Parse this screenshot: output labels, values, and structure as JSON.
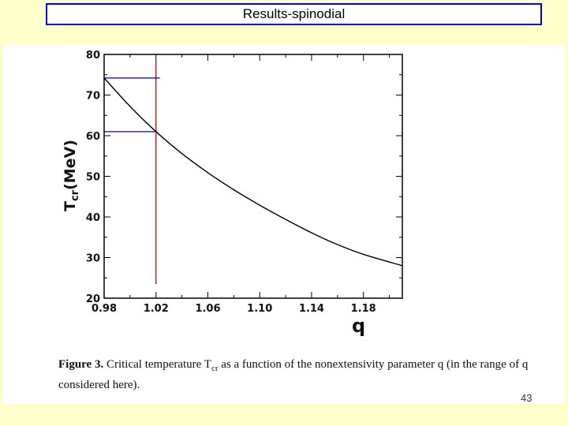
{
  "slide": {
    "title": "Results-spinodial",
    "page_number": "43"
  },
  "caption": {
    "label": "Figure 3.",
    "text": " Critical temperature T",
    "sub": "cr",
    "text2": " as a function of the nonextensivity parameter q (in the range of q considered here)."
  },
  "colors": {
    "background": "#ffffcc",
    "title_border": "#0000cc",
    "curve": "#000000",
    "red_line": "#cc0000",
    "blue_line": "#0000aa"
  },
  "chart_data": {
    "type": "line",
    "xlabel": "q",
    "ylabel_main": "T",
    "ylabel_sub": "cr",
    "ylabel_unit": "(MeV)",
    "xlim": [
      0.98,
      1.21
    ],
    "ylim": [
      20,
      80
    ],
    "xticks": [
      0.98,
      1.02,
      1.06,
      1.1,
      1.14,
      1.18
    ],
    "xtick_labels": [
      "0.98",
      "1.02",
      "1.06",
      "1.10",
      "1.14",
      "1.18"
    ],
    "yticks": [
      20,
      30,
      40,
      50,
      60,
      70,
      80
    ],
    "ytick_labels": [
      "20",
      "30",
      "40",
      "50",
      "60",
      "70",
      "80"
    ],
    "series": [
      {
        "name": "Tcr(q)",
        "x": [
          0.98,
          1.0,
          1.02,
          1.04,
          1.06,
          1.08,
          1.1,
          1.12,
          1.14,
          1.16,
          1.18,
          1.21
        ],
        "y": [
          74.2,
          67.2,
          61.0,
          55.6,
          50.9,
          46.7,
          42.9,
          39.4,
          36.1,
          33.2,
          30.8,
          28.0
        ]
      }
    ],
    "annotations": {
      "vertical_line": {
        "x": 1.02,
        "y_from": 23.5,
        "y_to": 80
      },
      "horizontal_lines": [
        {
          "y": 74.2,
          "x_from": 0.98,
          "x_to": 1.023
        },
        {
          "y": 61.0,
          "x_from": 0.98,
          "x_to": 1.02
        }
      ]
    }
  }
}
